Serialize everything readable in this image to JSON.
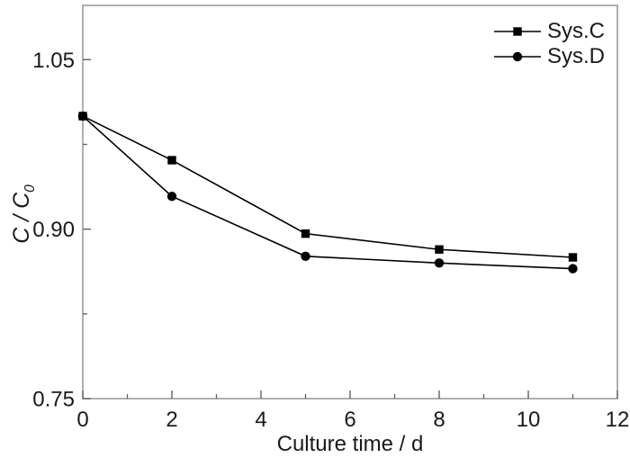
{
  "figure": {
    "background": "#ffffff"
  },
  "chart_data": {
    "type": "line",
    "title": "",
    "xlabel": "Culture time / d",
    "ylabel": "C / C0",
    "ylabel_parts": {
      "c1": "C",
      "slash": " / ",
      "c2": "C",
      "sub": "0"
    },
    "x": [
      0,
      2,
      5,
      8,
      11
    ],
    "series": [
      {
        "name": "Sys.C",
        "marker": "square",
        "values": [
          1.0,
          0.961,
          0.896,
          0.882,
          0.875
        ]
      },
      {
        "name": "Sys.D",
        "marker": "circle",
        "values": [
          1.0,
          0.929,
          0.876,
          0.87,
          0.865
        ]
      }
    ],
    "xlim": [
      0,
      12
    ],
    "ylim": [
      0.75,
      1.098
    ],
    "x_major_ticks": [
      0,
      2,
      4,
      6,
      8,
      10,
      12
    ],
    "x_tick_labels": [
      "0",
      "2",
      "4",
      "6",
      "8",
      "10",
      "12"
    ],
    "x_minor_ticks": [
      1,
      3,
      5,
      7,
      9,
      11
    ],
    "y_major_ticks": [
      0.75,
      0.9,
      1.05
    ],
    "y_tick_labels": [
      "0.75",
      "0.90",
      "1.05"
    ],
    "y_minor_ticks": [
      0.825,
      0.975
    ],
    "legend_position": "top-right",
    "grid": false,
    "colors": {
      "line": "#000000",
      "marker": "#000000",
      "axis": "#8f8f8f",
      "tick": "#606060",
      "text": "#1a1a1a"
    }
  }
}
